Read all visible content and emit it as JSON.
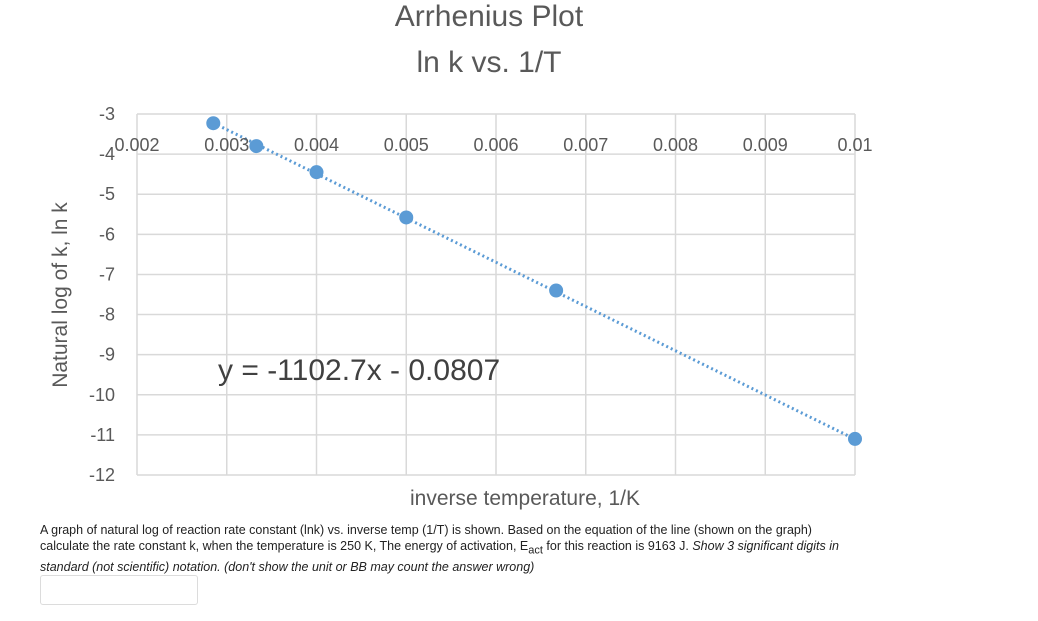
{
  "chart_data": {
    "type": "scatter",
    "title": [
      "Arrhenius Plot",
      "ln k vs. 1/T"
    ],
    "xlabel": "inverse temperature, 1/K",
    "ylabel": "Natural log of k, ln k",
    "xlim": [
      0.002,
      0.01
    ],
    "ylim": [
      -12,
      -3
    ],
    "x_ticks": [
      "0.002",
      "0.003",
      "0.004",
      "0.005",
      "0.006",
      "0.007",
      "0.008",
      "0.009",
      "0.01"
    ],
    "y_ticks": [
      "-3",
      "-4",
      "-5",
      "-6",
      "-7",
      "-8",
      "-9",
      "-10",
      "-11",
      "-12"
    ],
    "x_ticks_position": "top",
    "grid": true,
    "colors": {
      "marker": "#5b9bd5",
      "trendline": "#5b9bd5",
      "grid": "#d9d9d9"
    },
    "series": [
      {
        "x": [
          0.00285,
          0.00333,
          0.004,
          0.005,
          0.00667,
          0.01
        ],
        "y": [
          -3.23,
          -3.8,
          -4.45,
          -5.58,
          -7.4,
          -11.1
        ]
      }
    ],
    "trendline": {
      "type": "linear",
      "style": "dotted",
      "slope": -1102.7,
      "intercept": -0.0807,
      "label": "y = -1102.7x - 0.0807"
    }
  },
  "question": {
    "main_before": "A graph of natural log of reaction rate constant (lnk) vs. inverse temp (1/T) is shown. Based on the equation of the line (shown on the graph)  calculate the rate constant k, when the temperature is 250 K, The energy of activation, E",
    "sub": "act",
    "main_after": " for this reaction is 9163 J. ",
    "emphasis": "Show 3 significant digits in standard (not scientific) notation. (don't show the unit or BB may count the answer wrong)"
  },
  "answer": {
    "value": ""
  }
}
